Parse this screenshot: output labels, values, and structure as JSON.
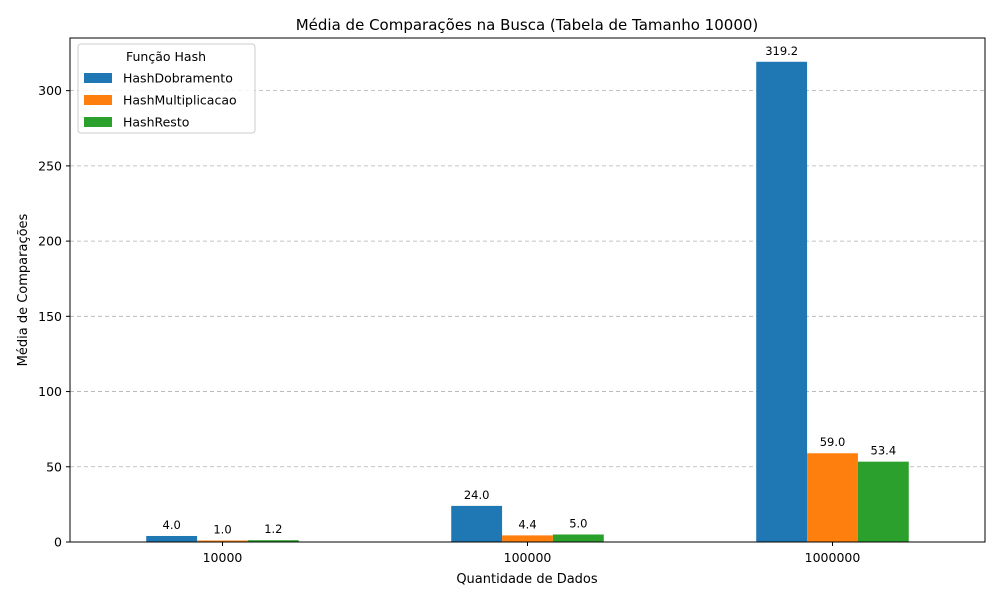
{
  "chart_data": {
    "type": "bar",
    "title": "Média de Comparações na Busca (Tabela de Tamanho 10000)",
    "xlabel": "Quantidade de Dados",
    "ylabel": "Média de Comparações",
    "categories": [
      "10000",
      "100000",
      "1000000"
    ],
    "series": [
      {
        "name": "HashDobramento",
        "color": "#1f77b4",
        "values": [
          4.0,
          24.0,
          319.2
        ],
        "labels": [
          "4.0",
          "24.0",
          "319.2"
        ]
      },
      {
        "name": "HashMultiplicacao",
        "color": "#ff7f0e",
        "values": [
          1.0,
          4.4,
          59.0
        ],
        "labels": [
          "1.0",
          "4.4",
          "59.0"
        ]
      },
      {
        "name": "HashResto",
        "color": "#2ca02c",
        "values": [
          1.2,
          5.0,
          53.4
        ],
        "labels": [
          "1.2",
          "5.0",
          "53.4"
        ]
      }
    ],
    "ylim": [
      0,
      335
    ],
    "yticks": [
      0,
      50,
      100,
      150,
      200,
      250,
      300
    ],
    "grid": "y-dashed",
    "legend": {
      "title": "Função Hash",
      "placement": "top-left"
    }
  }
}
